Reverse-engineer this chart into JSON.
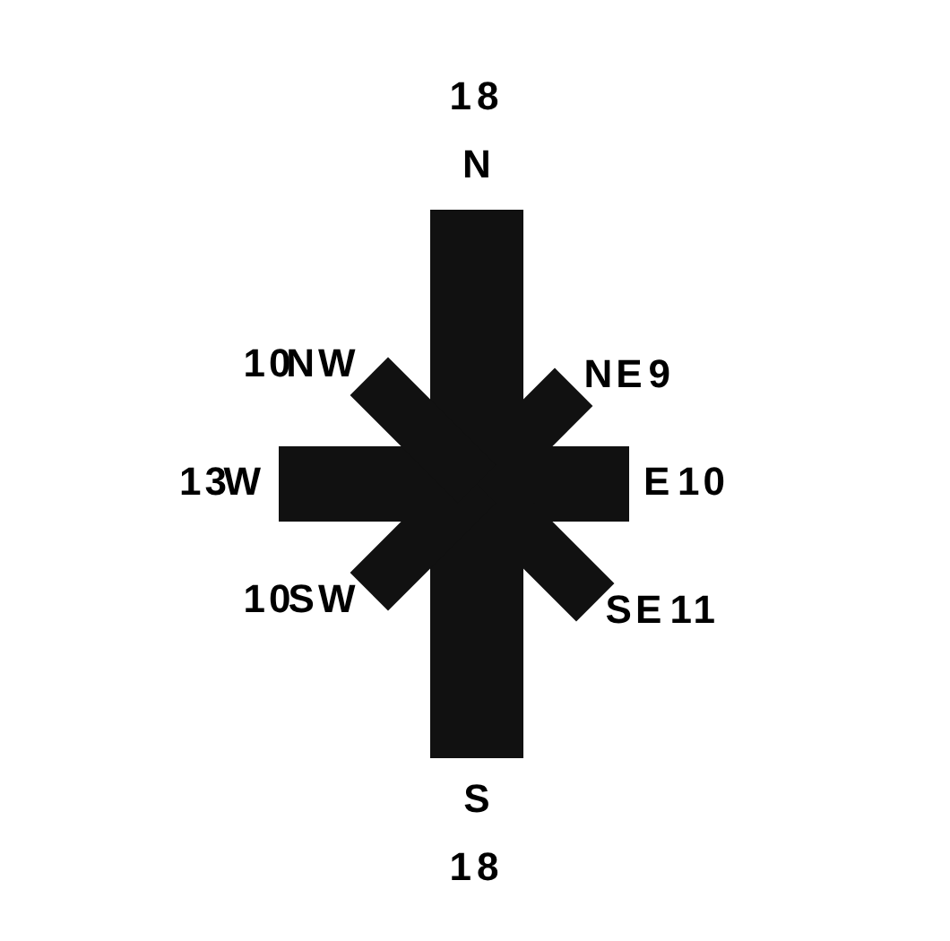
{
  "chart_data": {
    "type": "other",
    "categories": [
      "N",
      "NE",
      "E",
      "SE",
      "S",
      "SW",
      "W",
      "NW"
    ],
    "values": [
      18,
      9,
      10,
      11,
      18,
      10,
      13,
      10
    ],
    "color": "#111111",
    "data_labels": true
  }
}
